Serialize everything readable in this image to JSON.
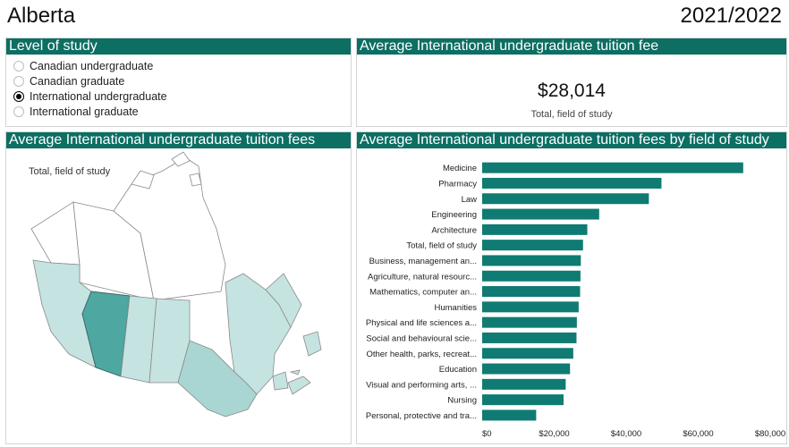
{
  "header": {
    "province": "Alberta",
    "year": "2021/2022"
  },
  "level_of_study": {
    "title": "Level of study",
    "options": [
      {
        "label": "Canadian undergraduate",
        "selected": false
      },
      {
        "label": "Canadian graduate",
        "selected": false
      },
      {
        "label": "International undergraduate",
        "selected": true
      },
      {
        "label": "International graduate",
        "selected": false
      }
    ]
  },
  "kpi": {
    "title": "Average International undergraduate tuition fee",
    "value": "$28,014",
    "caption": "Total, field of study"
  },
  "map": {
    "title": "Average International undergraduate tuition fees",
    "subtitle": "Total, field of study",
    "colors": {
      "selected": "#4ea7a0",
      "mid": "#a9d5d2",
      "light": "#c5e3e1",
      "none": "#ffffff",
      "stroke": "#7a7a7a"
    }
  },
  "bars": {
    "title": "Average International undergraduate tuition fees by field of study",
    "bar_color": "#0f7b72"
  },
  "chart_data": {
    "type": "bar",
    "orientation": "horizontal",
    "categories": [
      "Medicine",
      "Pharmacy",
      "Law",
      "Engineering",
      "Architecture",
      "Total, field of study",
      "Business, management an...",
      "Agriculture, natural resourc...",
      "Mathematics, computer an...",
      "Humanities",
      "Physical and life sciences a...",
      "Social and behavioural scie...",
      "Other health, parks, recreat...",
      "Education",
      "Visual and performing arts, ...",
      "Nursing",
      "Personal, protective and tra..."
    ],
    "values": [
      72500,
      49800,
      46300,
      32500,
      29200,
      28014,
      27400,
      27300,
      27200,
      26800,
      26300,
      26200,
      25300,
      24400,
      23200,
      22600,
      15000
    ],
    "xlim": [
      0,
      80000
    ],
    "xticks": [
      0,
      20000,
      40000,
      60000,
      80000
    ],
    "xtick_labels": [
      "$0",
      "$20,000",
      "$40,000",
      "$60,000",
      "$80,000"
    ],
    "grid": false
  }
}
